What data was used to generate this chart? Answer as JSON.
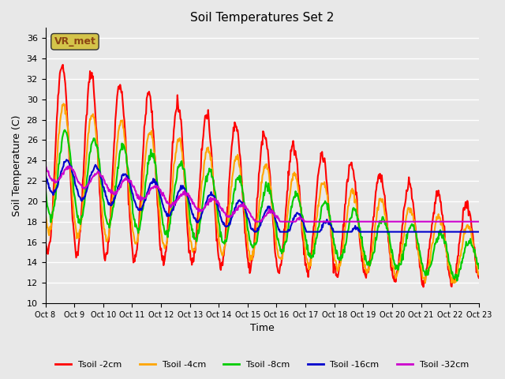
{
  "title": "Soil Temperatures Set 2",
  "xlabel": "Time",
  "ylabel": "Soil Temperature (C)",
  "ylim": [
    10,
    37
  ],
  "yticks": [
    10,
    12,
    14,
    16,
    18,
    20,
    22,
    24,
    26,
    28,
    30,
    32,
    34,
    36
  ],
  "background_color": "#e8e8e8",
  "plot_bg_color": "#e8e8e8",
  "annotation_text": "VR_met",
  "annotation_color": "#8B4513",
  "annotation_bg": "#d4c44a",
  "series_names": [
    "Tsoil -2cm",
    "Tsoil -4cm",
    "Tsoil -8cm",
    "Tsoil -16cm",
    "Tsoil -32cm"
  ],
  "series_colors": [
    "#FF0000",
    "#FFA500",
    "#00CC00",
    "#0000CC",
    "#CC00CC"
  ],
  "series_lw": [
    1.5,
    1.5,
    1.5,
    1.5,
    1.5
  ],
  "xtick_labels": [
    "Oct 8",
    "Oct 9",
    "Oct 10",
    "Oct 11",
    "Oct 12",
    "Oct 13",
    "Oct 14",
    "Oct 15",
    "Oct 16",
    "Oct 17",
    "Oct 18",
    "Oct 19",
    "Oct 20",
    "Oct 21",
    "Oct 22",
    "Oct 23"
  ],
  "n_days": 15,
  "points_per_day": 48
}
